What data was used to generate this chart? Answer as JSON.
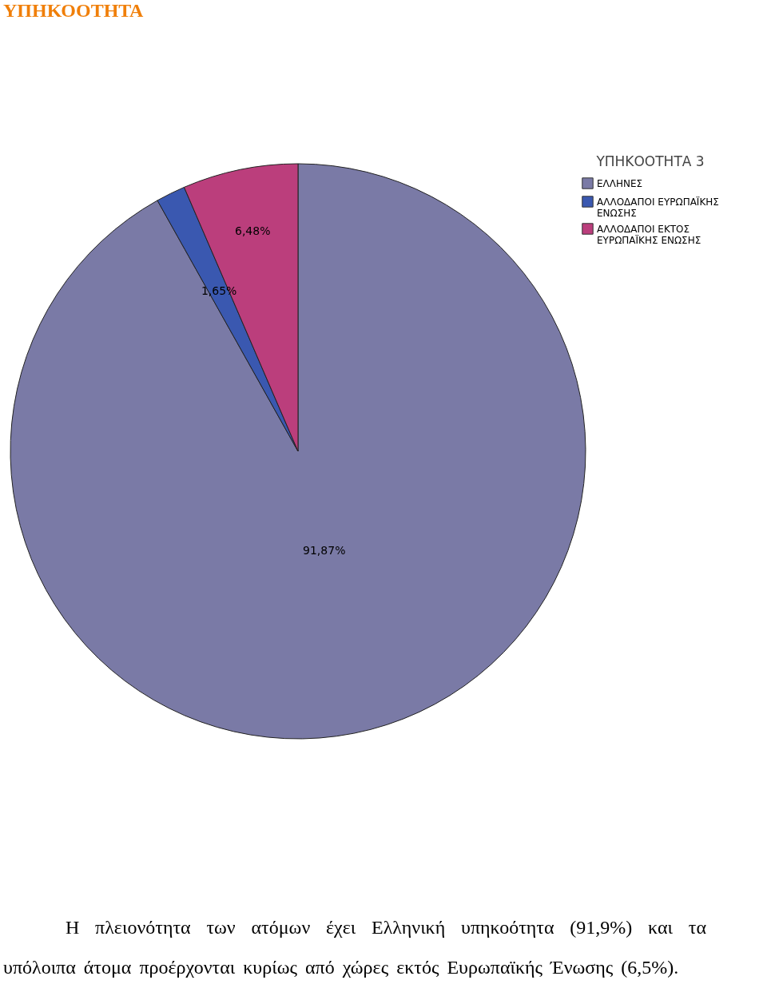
{
  "chart_data": {
    "type": "pie",
    "title": "ΥΠΗΚΟΟΤΗΤΑ",
    "legend_title": "ΥΠΗΚΟΟΤΗΤΑ 3",
    "legend": "top right",
    "categories": [
      "ΕΛΛΗΝΕΣ",
      "ΑΛΛΟΔΑΠΟΙ ΕΥΡΩΠΑΪΚΗΣ ΕΝΩΣΗΣ",
      "ΑΛΛΟΔΑΠΟΙ ΕΚΤΟΣ ΕΥΡΩΠΑΪΚΗΣ ΕΝΩΣΗΣ"
    ],
    "values": [
      91.87,
      1.65,
      6.48
    ],
    "value_labels": [
      "91,87%",
      "1,65%",
      "6,48%"
    ],
    "colors": [
      "#7a7aa6",
      "#3a58b0",
      "#bb3e7c"
    ],
    "annotations": [
      "Η πλειονότητα των ατόμων έχει Ελληνική υπηκοότητα (91,9%) και τα υπόλοιπα άτομα προέρχονται κυρίως από χώρες εκτός Ευρωπαϊκής Ένωσης (6,5%)."
    ]
  }
}
